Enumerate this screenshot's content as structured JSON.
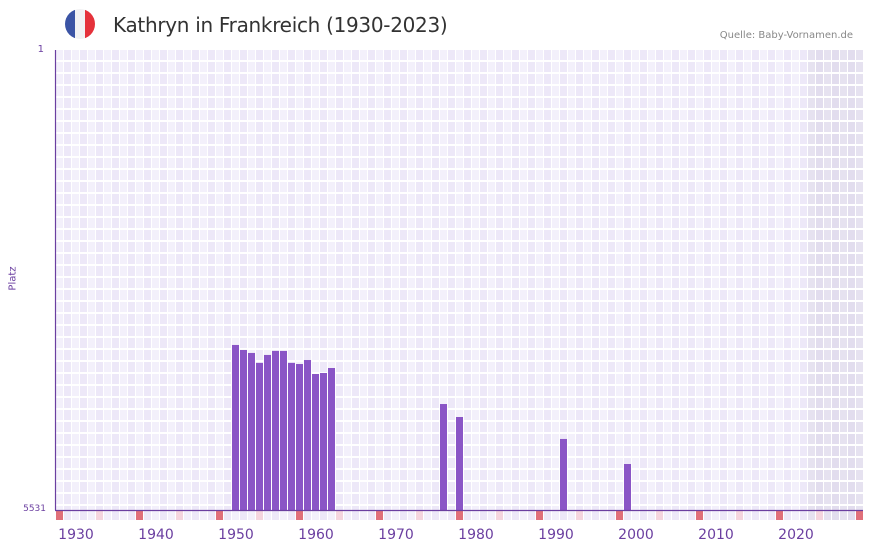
{
  "header": {
    "title": "Kathryn in Frankreich (1930-2023)",
    "source": "Quelle: Baby-Vornamen.de",
    "flag": {
      "name": "france-flag",
      "colors": [
        "#3b54a5",
        "#f2f2f4",
        "#e5323b"
      ]
    }
  },
  "axes": {
    "y_title": "Platz",
    "y_top_label": "1",
    "y_bottom_label": "5531",
    "x_labels": [
      {
        "label": "1930",
        "year": 1930
      },
      {
        "label": "1940",
        "year": 1940
      },
      {
        "label": "1950",
        "year": 1950
      },
      {
        "label": "1960",
        "year": 1960
      },
      {
        "label": "1970",
        "year": 1970
      },
      {
        "label": "1980",
        "year": 1980
      },
      {
        "label": "1990",
        "year": 1990
      },
      {
        "label": "2000",
        "year": 2000
      },
      {
        "label": "2010",
        "year": 2010
      },
      {
        "label": "2020",
        "year": 2020
      }
    ]
  },
  "colors": {
    "bar": "#8a55c6",
    "axis": "#6b3fa0",
    "grid_a": "#ede8f8",
    "grid_b": "#f3f0fb",
    "shaded_a": "#e2ddee",
    "shaded_b": "#e6e2f0",
    "decade_marker": "#e0707a",
    "half_decade_marker": "#f5d5de"
  },
  "chart_data": {
    "type": "bar",
    "title": "Kathryn in Frankreich (1930-2023)",
    "xlabel": "",
    "ylabel": "Platz",
    "y_inverted": true,
    "ylim": [
      5531,
      1
    ],
    "xlim": [
      1928,
      2028
    ],
    "grid": true,
    "legend": null,
    "shaded_from_year": 2022,
    "x": [
      1950,
      1951,
      1952,
      1953,
      1954,
      1955,
      1956,
      1957,
      1958,
      1959,
      1960,
      1961,
      1962,
      1976,
      1978,
      1991,
      1999
    ],
    "values": [
      3547,
      3607,
      3643,
      3763,
      3667,
      3619,
      3619,
      3763,
      3776,
      3728,
      3896,
      3884,
      3824,
      4257,
      4413,
      4677,
      4978
    ],
    "annotations": [
      "Quelle: Baby-Vornamen.de"
    ]
  }
}
